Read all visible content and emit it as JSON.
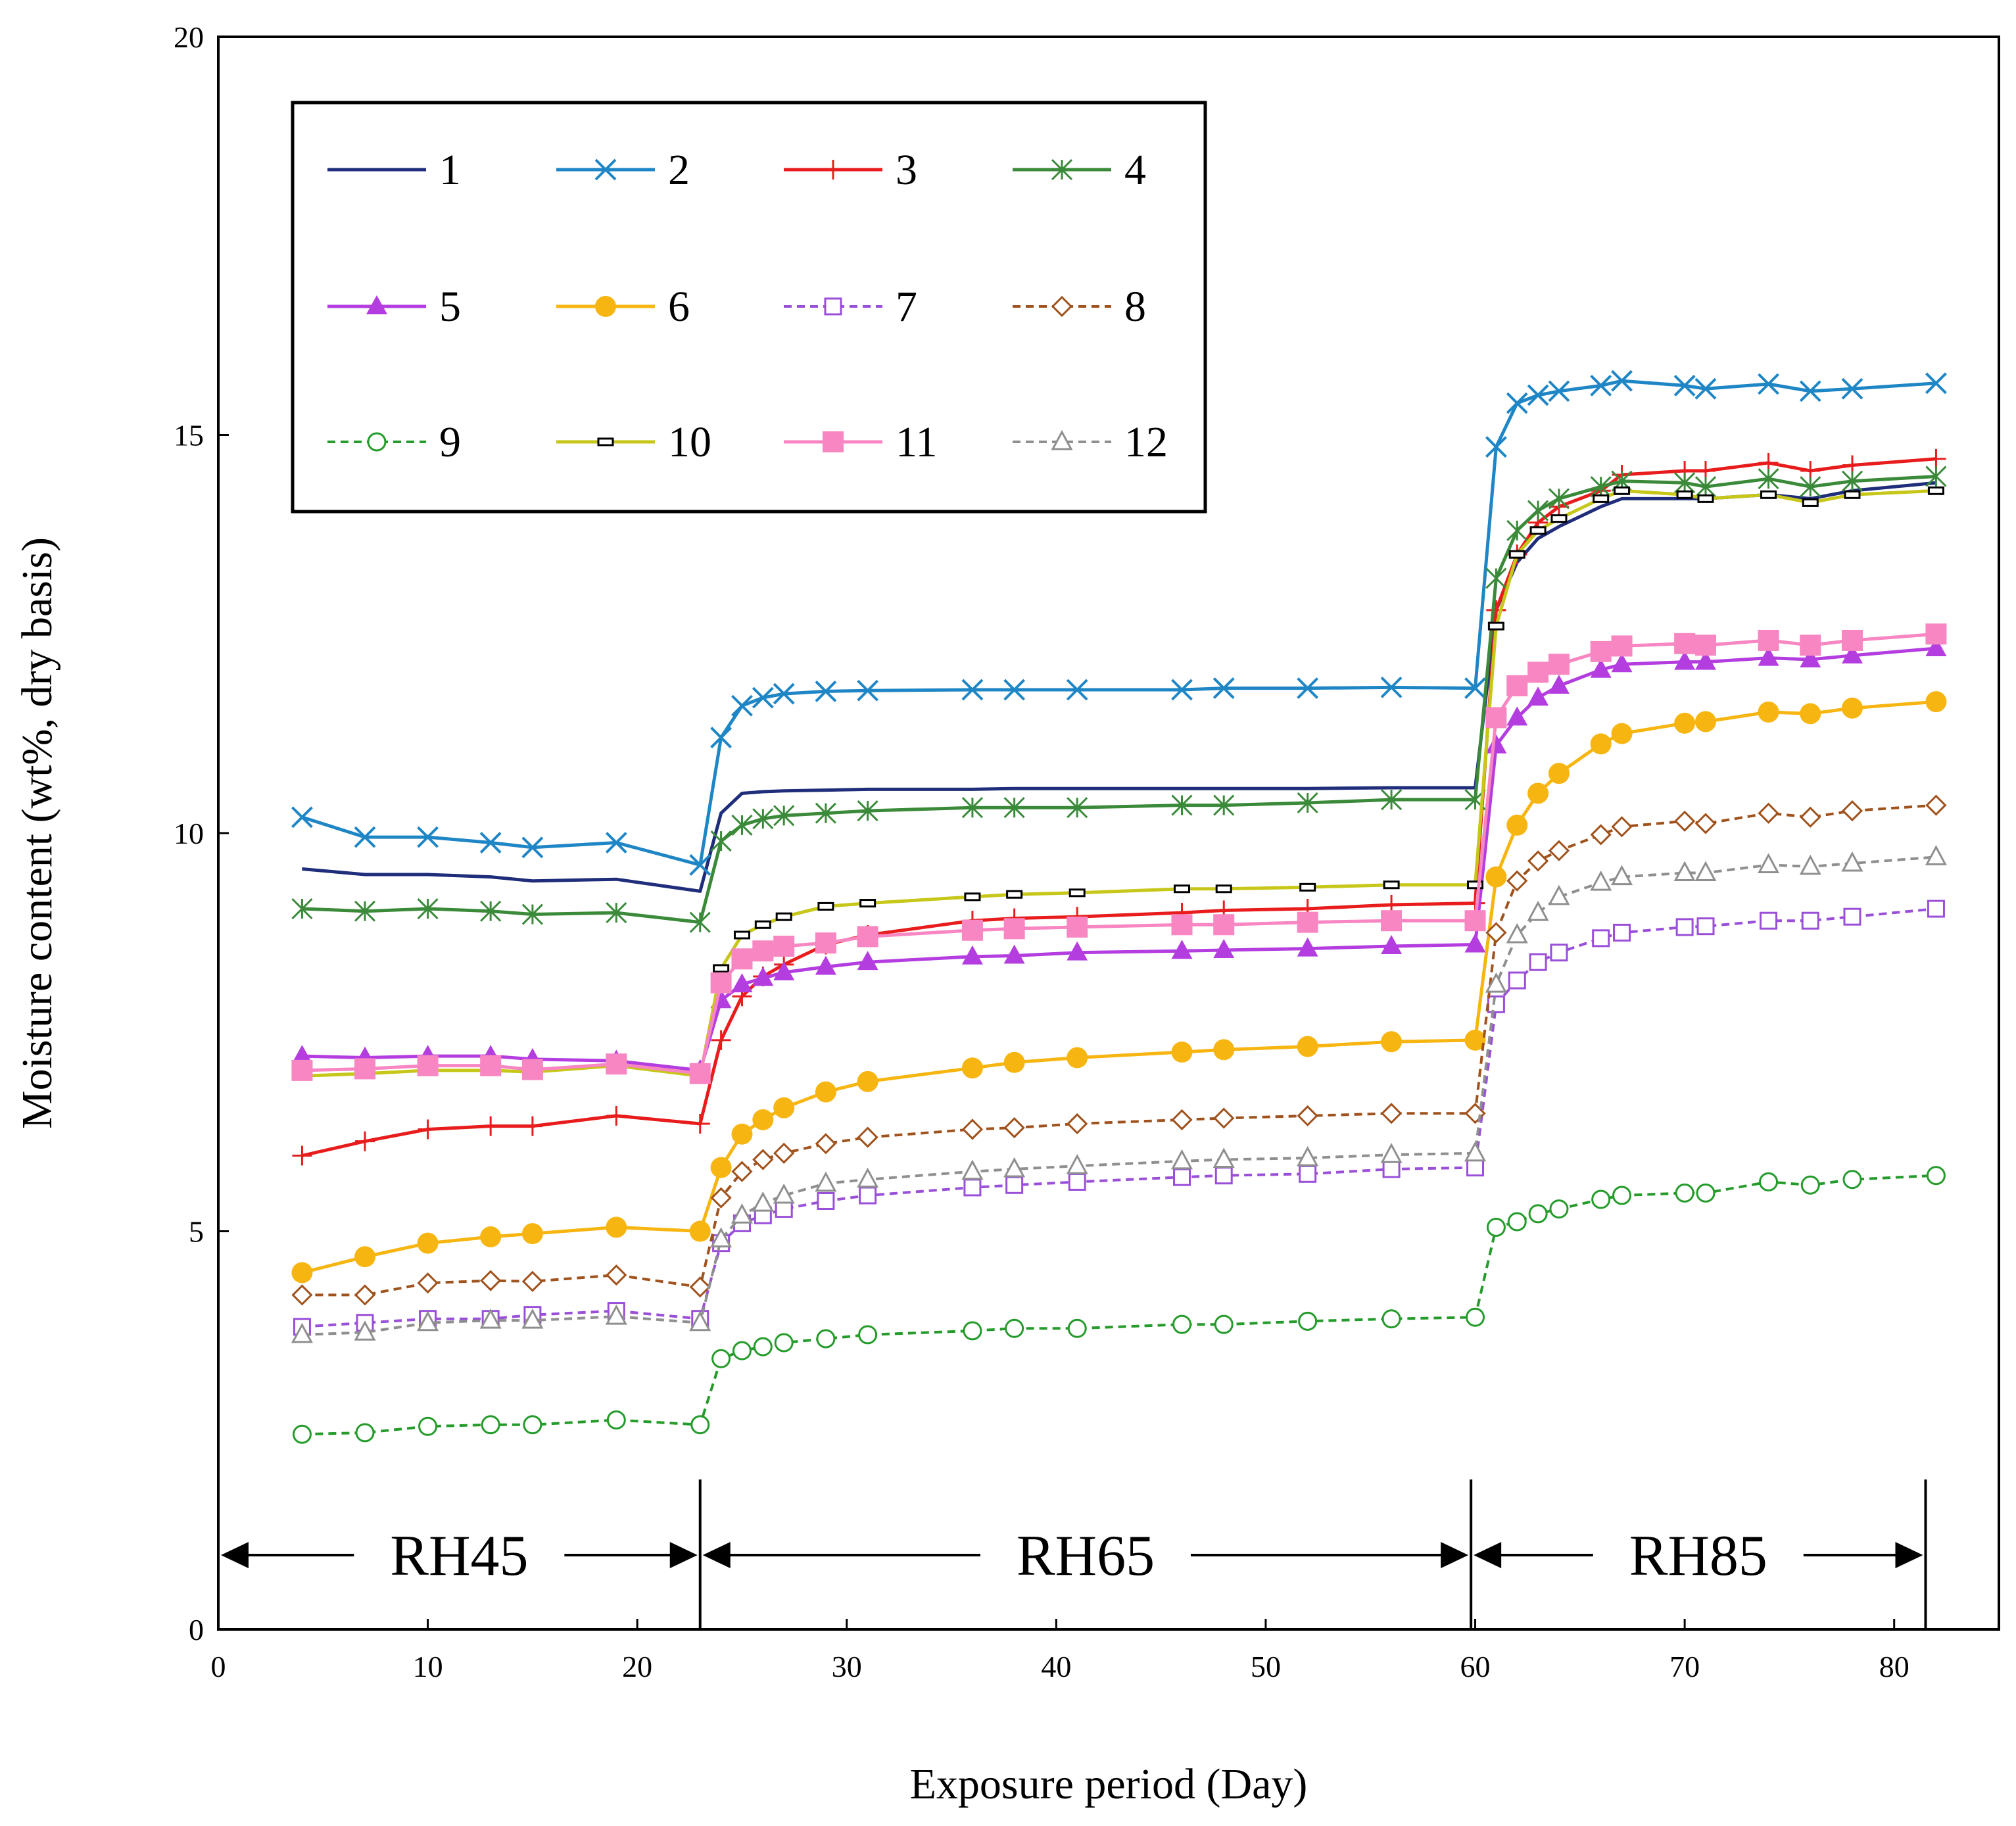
{
  "chart_data": {
    "type": "line",
    "title": "",
    "xlabel": "Exposure period (Day)",
    "ylabel": "Moisture content (wt%, dry basis)",
    "xlim": [
      0,
      85
    ],
    "ylim": [
      0,
      20
    ],
    "xticks": [
      0,
      10,
      20,
      30,
      40,
      50,
      60,
      70,
      80
    ],
    "yticks": [
      0,
      5,
      10,
      15,
      20
    ],
    "grid": false,
    "legend_position": "top-left",
    "x": [
      4,
      7,
      10,
      13,
      15,
      19,
      23,
      24,
      25,
      26,
      27,
      29,
      31,
      36,
      38,
      41,
      46,
      48,
      52,
      56,
      60,
      61,
      62,
      63,
      64,
      66,
      67,
      70,
      71,
      74,
      76,
      78,
      82
    ],
    "series": [
      {
        "name": "1",
        "color": "#1f2d7a",
        "dash": false,
        "marker": "none",
        "values": [
          9.55,
          9.48,
          9.48,
          9.45,
          9.4,
          9.42,
          9.27,
          10.25,
          10.5,
          10.52,
          10.53,
          10.54,
          10.55,
          10.55,
          10.56,
          10.56,
          10.56,
          10.56,
          10.56,
          10.57,
          10.57,
          12.8,
          13.4,
          13.7,
          13.85,
          14.1,
          14.2,
          14.2,
          14.2,
          14.25,
          14.2,
          14.3,
          14.4
        ]
      },
      {
        "name": "2",
        "color": "#1f86c6",
        "dash": false,
        "marker": "x",
        "values": [
          10.2,
          9.95,
          9.95,
          9.88,
          9.82,
          9.88,
          9.6,
          11.2,
          11.6,
          11.7,
          11.75,
          11.78,
          11.79,
          11.8,
          11.8,
          11.8,
          11.8,
          11.82,
          11.82,
          11.83,
          11.82,
          14.85,
          15.4,
          15.5,
          15.55,
          15.62,
          15.68,
          15.62,
          15.58,
          15.64,
          15.55,
          15.58,
          15.65
        ]
      },
      {
        "name": "3",
        "color": "#e81c1c",
        "dash": false,
        "marker": "plus",
        "values": [
          5.95,
          6.13,
          6.28,
          6.32,
          6.32,
          6.45,
          6.35,
          7.4,
          7.95,
          8.2,
          8.35,
          8.6,
          8.72,
          8.9,
          8.93,
          8.95,
          9.0,
          9.03,
          9.05,
          9.1,
          9.12,
          12.8,
          13.5,
          13.9,
          14.1,
          14.3,
          14.5,
          14.55,
          14.55,
          14.65,
          14.55,
          14.62,
          14.7
        ]
      },
      {
        "name": "4",
        "color": "#3a8a3a",
        "dash": false,
        "marker": "asterisk",
        "values": [
          9.05,
          9.02,
          9.05,
          9.02,
          8.98,
          9.0,
          8.88,
          9.9,
          10.1,
          10.18,
          10.22,
          10.25,
          10.28,
          10.32,
          10.32,
          10.32,
          10.35,
          10.35,
          10.38,
          10.42,
          10.42,
          13.2,
          13.8,
          14.05,
          14.2,
          14.35,
          14.42,
          14.4,
          14.35,
          14.45,
          14.35,
          14.42,
          14.48
        ]
      },
      {
        "name": "5",
        "color": "#b43de0",
        "dash": false,
        "marker": "triangle-filled",
        "values": [
          7.2,
          7.18,
          7.2,
          7.2,
          7.16,
          7.14,
          7.02,
          7.9,
          8.1,
          8.18,
          8.25,
          8.32,
          8.38,
          8.45,
          8.46,
          8.5,
          8.52,
          8.53,
          8.55,
          8.58,
          8.6,
          11.1,
          11.45,
          11.7,
          11.85,
          12.05,
          12.12,
          12.15,
          12.15,
          12.2,
          12.18,
          12.23,
          12.32
        ]
      },
      {
        "name": "6",
        "color": "#f7b511",
        "dash": false,
        "marker": "circle-filled",
        "values": [
          4.48,
          4.68,
          4.85,
          4.93,
          4.97,
          5.05,
          5.0,
          5.8,
          6.22,
          6.4,
          6.55,
          6.75,
          6.88,
          7.05,
          7.12,
          7.18,
          7.25,
          7.28,
          7.32,
          7.38,
          7.4,
          9.45,
          10.1,
          10.5,
          10.75,
          11.12,
          11.25,
          11.38,
          11.4,
          11.52,
          11.5,
          11.57,
          11.65
        ]
      },
      {
        "name": "7",
        "color": "#9a4fd8",
        "dash": true,
        "marker": "square-open",
        "values": [
          3.8,
          3.85,
          3.9,
          3.9,
          3.95,
          4.0,
          3.9,
          4.85,
          5.1,
          5.2,
          5.28,
          5.38,
          5.45,
          5.55,
          5.58,
          5.62,
          5.68,
          5.7,
          5.72,
          5.78,
          5.8,
          7.85,
          8.15,
          8.38,
          8.5,
          8.68,
          8.75,
          8.82,
          8.83,
          8.9,
          8.9,
          8.95,
          9.05
        ]
      },
      {
        "name": "8",
        "color": "#a0521d",
        "dash": true,
        "marker": "diamond-open",
        "values": [
          4.2,
          4.2,
          4.35,
          4.38,
          4.37,
          4.45,
          4.3,
          5.42,
          5.75,
          5.9,
          5.98,
          6.1,
          6.18,
          6.28,
          6.3,
          6.35,
          6.4,
          6.42,
          6.45,
          6.48,
          6.48,
          8.75,
          9.4,
          9.65,
          9.78,
          9.98,
          10.08,
          10.15,
          10.12,
          10.25,
          10.2,
          10.28,
          10.35
        ]
      },
      {
        "name": "9",
        "color": "#249b2a",
        "dash": true,
        "marker": "circle-open",
        "values": [
          2.45,
          2.47,
          2.55,
          2.57,
          2.57,
          2.63,
          2.57,
          3.4,
          3.5,
          3.55,
          3.6,
          3.65,
          3.7,
          3.75,
          3.78,
          3.78,
          3.83,
          3.83,
          3.87,
          3.9,
          3.92,
          5.05,
          5.12,
          5.22,
          5.28,
          5.4,
          5.45,
          5.48,
          5.48,
          5.62,
          5.58,
          5.65,
          5.7
        ]
      },
      {
        "name": "10",
        "color": "#c7c71a",
        "dash": false,
        "marker": "dash",
        "values": [
          6.95,
          6.98,
          7.02,
          7.02,
          7.0,
          7.08,
          6.95,
          8.3,
          8.72,
          8.85,
          8.95,
          9.08,
          9.12,
          9.2,
          9.23,
          9.25,
          9.3,
          9.3,
          9.32,
          9.35,
          9.35,
          12.6,
          13.5,
          13.8,
          13.95,
          14.2,
          14.3,
          14.25,
          14.2,
          14.25,
          14.15,
          14.25,
          14.3
        ]
      },
      {
        "name": "11",
        "color": "#f786c2",
        "dash": false,
        "marker": "square-filled",
        "values": [
          7.02,
          7.04,
          7.08,
          7.08,
          7.03,
          7.1,
          6.98,
          8.12,
          8.42,
          8.52,
          8.58,
          8.62,
          8.7,
          8.78,
          8.8,
          8.82,
          8.85,
          8.85,
          8.88,
          8.9,
          8.9,
          11.45,
          11.85,
          12.02,
          12.12,
          12.28,
          12.35,
          12.38,
          12.36,
          12.42,
          12.36,
          12.42,
          12.5
        ]
      },
      {
        "name": "12",
        "color": "#8f8f8f",
        "dash": true,
        "marker": "triangle-open",
        "values": [
          3.7,
          3.73,
          3.85,
          3.88,
          3.88,
          3.93,
          3.85,
          4.9,
          5.2,
          5.35,
          5.45,
          5.6,
          5.65,
          5.75,
          5.78,
          5.82,
          5.88,
          5.9,
          5.92,
          5.96,
          5.98,
          8.1,
          8.72,
          9.0,
          9.2,
          9.38,
          9.45,
          9.5,
          9.5,
          9.6,
          9.58,
          9.62,
          9.7
        ]
      }
    ],
    "regions": [
      {
        "label": "RH45",
        "start": 0,
        "end": 23
      },
      {
        "label": "RH65",
        "start": 23,
        "end": 59.8
      },
      {
        "label": "RH85",
        "start": 59.8,
        "end": 81.5
      }
    ]
  }
}
